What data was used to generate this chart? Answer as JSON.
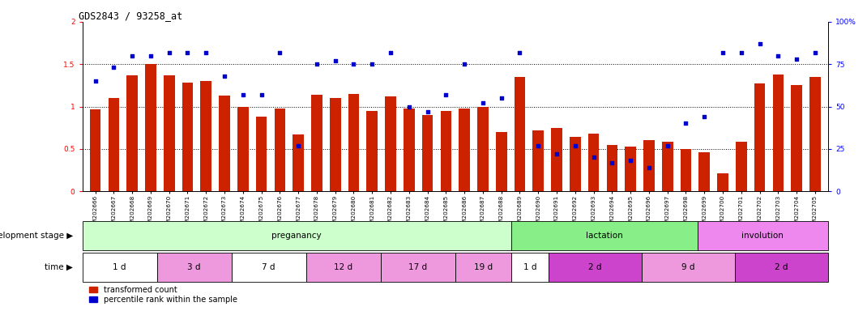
{
  "title": "GDS2843 / 93258_at",
  "samples": [
    "GSM202666",
    "GSM202667",
    "GSM202668",
    "GSM202669",
    "GSM202670",
    "GSM202671",
    "GSM202672",
    "GSM202673",
    "GSM202674",
    "GSM202675",
    "GSM202676",
    "GSM202677",
    "GSM202678",
    "GSM202679",
    "GSM202680",
    "GSM202681",
    "GSM202682",
    "GSM202683",
    "GSM202684",
    "GSM202685",
    "GSM202686",
    "GSM202687",
    "GSM202688",
    "GSM202689",
    "GSM202690",
    "GSM202691",
    "GSM202692",
    "GSM202693",
    "GSM202694",
    "GSM202695",
    "GSM202696",
    "GSM202697",
    "GSM202698",
    "GSM202699",
    "GSM202700",
    "GSM202701",
    "GSM202702",
    "GSM202703",
    "GSM202704",
    "GSM202705"
  ],
  "bar_values": [
    0.97,
    1.1,
    1.37,
    1.5,
    1.37,
    1.28,
    1.3,
    1.13,
    1.0,
    0.88,
    0.98,
    0.67,
    1.14,
    1.1,
    1.15,
    0.95,
    1.12,
    0.98,
    0.9,
    0.95,
    0.98,
    1.0,
    0.7,
    1.35,
    0.72,
    0.75,
    0.64,
    0.68,
    0.55,
    0.53,
    0.6,
    0.58,
    0.5,
    0.46,
    0.21,
    0.58,
    1.27,
    1.38,
    1.25,
    1.35
  ],
  "dot_values_pct": [
    65,
    73,
    80,
    80,
    82,
    82,
    82,
    68,
    57,
    57,
    82,
    27,
    75,
    77,
    75,
    75,
    82,
    50,
    47,
    57,
    75,
    52,
    55,
    82,
    27,
    22,
    27,
    20,
    17,
    18,
    14,
    27,
    40,
    44,
    82,
    82,
    87,
    80,
    78,
    82
  ],
  "bar_color": "#cc2200",
  "dot_color": "#0000cc",
  "ylim_left": [
    0,
    2
  ],
  "ylim_right": [
    0,
    100
  ],
  "yticks_left": [
    0,
    0.5,
    1.0,
    1.5,
    2.0
  ],
  "yticks_right": [
    0,
    25,
    50,
    75,
    100
  ],
  "ytick_labels_left": [
    "0",
    "0.5",
    "1",
    "1.5",
    "2"
  ],
  "ytick_labels_right": [
    "0",
    "25",
    "50",
    "75",
    "100%"
  ],
  "hlines": [
    0.5,
    1.0,
    1.5
  ],
  "development_stages": [
    {
      "label": "preganancy",
      "start": 0,
      "end": 23,
      "color": "#ccffcc"
    },
    {
      "label": "lactation",
      "start": 23,
      "end": 33,
      "color": "#88ee88"
    },
    {
      "label": "involution",
      "start": 33,
      "end": 40,
      "color": "#ee88ee"
    }
  ],
  "time_periods": [
    {
      "label": "1 d",
      "start": 0,
      "end": 4,
      "color": "#ffffff"
    },
    {
      "label": "3 d",
      "start": 4,
      "end": 8,
      "color": "#ee99dd"
    },
    {
      "label": "7 d",
      "start": 8,
      "end": 12,
      "color": "#ffffff"
    },
    {
      "label": "12 d",
      "start": 12,
      "end": 16,
      "color": "#ee99dd"
    },
    {
      "label": "17 d",
      "start": 16,
      "end": 20,
      "color": "#ee99dd"
    },
    {
      "label": "19 d",
      "start": 20,
      "end": 23,
      "color": "#ee99dd"
    },
    {
      "label": "1 d",
      "start": 23,
      "end": 25,
      "color": "#ffffff"
    },
    {
      "label": "2 d",
      "start": 25,
      "end": 30,
      "color": "#cc44cc"
    },
    {
      "label": "9 d",
      "start": 30,
      "end": 35,
      "color": "#ee99dd"
    },
    {
      "label": "2 d",
      "start": 35,
      "end": 40,
      "color": "#cc44cc"
    }
  ],
  "legend_bar_label": "transformed count",
  "legend_dot_label": "percentile rank within the sample",
  "stage_label": "development stage ▶",
  "time_label": "time ▶"
}
